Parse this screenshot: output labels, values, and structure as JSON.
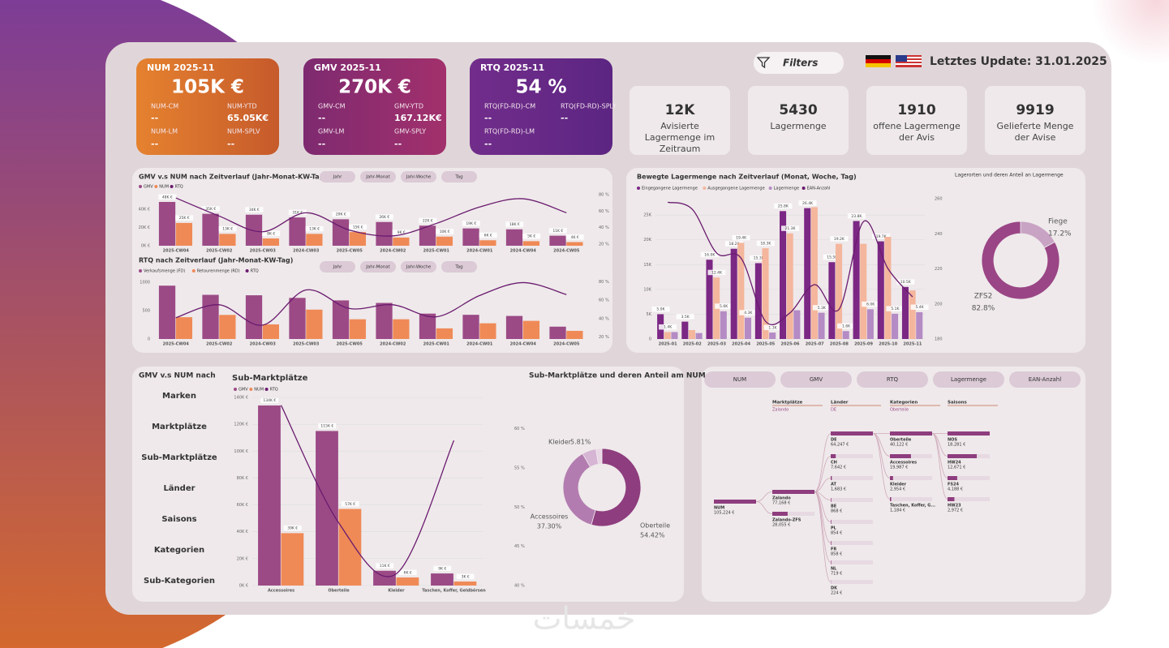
{
  "header": {
    "filters": "Filters",
    "update": "Letztes Update: 31.01.2025"
  },
  "kpis": [
    {
      "title": "NUM 2025-11",
      "value": "105K €",
      "colors": [
        "#e5822f",
        "#c65a2b"
      ],
      "items": [
        {
          "label": "NUM-CM",
          "value": "--"
        },
        {
          "label": "NUM-YTD",
          "value": "65.05K€"
        },
        {
          "label": "NUM-LM",
          "value": "--"
        },
        {
          "label": "NUM-SPLV",
          "value": "--"
        }
      ]
    },
    {
      "title": "GMV 2025-11",
      "value": "270K €",
      "colors": [
        "#7e2a70",
        "#a2306c"
      ],
      "items": [
        {
          "label": "GMV-CM",
          "value": "--"
        },
        {
          "label": "GMV-YTD",
          "value": "167.12K€"
        },
        {
          "label": "GMV-LM",
          "value": "--"
        },
        {
          "label": "GMV-SPLY",
          "value": "--"
        }
      ]
    },
    {
      "title": "RTQ 2025-11",
      "value": "54 %",
      "colors": [
        "#722d8b",
        "#5c2582"
      ],
      "items": [
        {
          "label": "RTQ(FD-RD)-CM",
          "value": "--"
        },
        {
          "label": "RTQ(FD-RD)-SPLY",
          "value": "--"
        },
        {
          "label": "RTQ(FD-RD)-LM",
          "value": "--"
        }
      ]
    }
  ],
  "stats": [
    {
      "value": "12K",
      "label": "Avisierte Lagermenge im Zeitraum"
    },
    {
      "value": 5430,
      "label": "Lagermenge"
    },
    {
      "value": 1910,
      "label": "offene Lagermenge der Avis"
    },
    {
      "value": 9919,
      "label": "Gelieferte Menge der Avise"
    }
  ],
  "slicer": {
    "title": "GMV v.s NUM nach",
    "items": [
      "Marken",
      "Marktplätze",
      "Sub-Marktplätze",
      "Länder",
      "Saisons",
      "Kategorien",
      "Sub-Kategorien"
    ]
  },
  "measure_buttons": [
    "NUM",
    "GMV",
    "RTQ",
    "Lagermenge",
    "EAN-Anzahl"
  ],
  "chart_data": [
    {
      "type": "combo",
      "title": "GMV v.s NUM nach Zeitverlauf (Jahr-Monat-KW-Tag)",
      "buttons": [
        "Jahr",
        "Jahr-Monat",
        "Jahr-Woche",
        "Tag"
      ],
      "categories": [
        "2025-CW04",
        "2025-CW02",
        "2025-CW03",
        "2024-CW03",
        "2025-CW05",
        "2024-CW02",
        "2025-CW01",
        "2024-CW01",
        "2024-CW04",
        "2024-CW05"
      ],
      "series": [
        {
          "name": "GMV",
          "color": "#9b4a86",
          "kind": "bar",
          "values": [
            48000,
            35000,
            34000,
            31000,
            29000,
            26000,
            22000,
            19000,
            18000,
            11000
          ],
          "value_labels": [
            "48K €",
            "35K €",
            "34K €",
            "31K €",
            "29K €",
            "26K €",
            "22K €",
            "19K €",
            "18K €",
            "11K €"
          ]
        },
        {
          "name": "NUM",
          "color": "#ef8a57",
          "kind": "bar",
          "values": [
            25000,
            13000,
            8000,
            13000,
            15000,
            9000,
            10000,
            6000,
            5000,
            4000
          ],
          "value_labels": [
            "25K €",
            "13K €",
            "8K €",
            "13K €",
            "15K €",
            "9K €",
            "10K €",
            "6K €",
            "5K €",
            "4K €"
          ]
        },
        {
          "name": "RTQ",
          "color": "#6a1b6e",
          "kind": "line",
          "axis": "y2",
          "values": [
            76,
            54,
            35,
            58,
            37,
            30,
            45,
            65,
            75,
            58
          ]
        }
      ],
      "ylim": [
        0,
        56000
      ],
      "yticks": [
        {
          "value": 0,
          "label": "0K €"
        },
        {
          "value": 20000,
          "label": "20K €"
        },
        {
          "value": 40000,
          "label": "40K €"
        }
      ],
      "y2lim": [
        18,
        80
      ],
      "y2ticks": [
        {
          "value": 20,
          "label": "20 %"
        },
        {
          "value": 40,
          "label": "40 %"
        },
        {
          "value": 60,
          "label": "60 %"
        },
        {
          "value": 80,
          "label": "80 %"
        }
      ],
      "grid": false
    },
    {
      "type": "combo",
      "title": "RTQ nach Zeitverlauf (Jahr-Monat-KW-Tag)",
      "buttons": [
        "Jahr",
        "Jahr-Monat",
        "Jahr-Woche",
        "Tag"
      ],
      "categories": [
        "2025-CW04",
        "2025-CW02",
        "2024-CW03",
        "2025-CW03",
        "2025-CW05",
        "2024-CW02",
        "2025-CW01",
        "2024-CW01",
        "2024-CW04",
        "2024-CW05"
      ],
      "series": [
        {
          "name": "Verkaufsmenge (FD)",
          "color": "#9b4a86",
          "kind": "bar",
          "values": [
            937,
            776,
            768,
            722,
            678,
            634,
            446,
            425,
            405,
            217
          ]
        },
        {
          "name": "Retourenmenge (RD)",
          "color": "#ef8a57",
          "kind": "bar",
          "values": [
            383,
            423,
            257,
            516,
            347,
            347,
            187,
            276,
            319,
            143
          ]
        },
        {
          "name": "RTQ",
          "color": "#6a1b6e",
          "kind": "line",
          "axis": "y2",
          "values": [
            41,
            55,
            33,
            71,
            51,
            55,
            42,
            65,
            79,
            66
          ]
        }
      ],
      "ylim": [
        0,
        1040
      ],
      "yticks": [
        0,
        500,
        1000
      ],
      "y2lim": [
        18,
        82
      ],
      "y2ticks": [
        {
          "value": 20,
          "label": "20 %"
        },
        {
          "value": 40,
          "label": "40 %"
        },
        {
          "value": 60,
          "label": "60 %"
        },
        {
          "value": 80,
          "label": "80 %"
        }
      ],
      "grid": false
    },
    {
      "type": "combo",
      "title": "Bewegte Lagermenge nach Zeitverlauf (Monat, Woche, Tag)",
      "categories": [
        "2025-01",
        "2025-02",
        "2025-03",
        "2025-04",
        "2025-05",
        "2025-06",
        "2025-07",
        "2025-08",
        "2025-09",
        "2025-10",
        "2025-11"
      ],
      "series": [
        {
          "name": "Eingegangene Lagermenge",
          "color": "#7b2784",
          "kind": "bar",
          "values": [
            5000,
            3500,
            16000,
            18200,
            15300,
            25800,
            26400,
            15500,
            23800,
            19700,
            10500
          ],
          "value_labels": [
            "5.0K",
            "3.5K",
            "16.0K",
            "18.2K",
            "15.3K",
            "25.8K",
            "26.4K",
            "15.5K",
            "23.8K",
            "19.7K",
            "10.5K"
          ]
        },
        {
          "name": "Ausgegangene Lagermenge",
          "color": "#f4b69c",
          "kind": "bar",
          "values": [
            1400,
            1800,
            12400,
            19400,
            18300,
            21300,
            26600,
            19200,
            19200,
            20600,
            9800
          ],
          "value_labels": [
            "1.4K",
            null,
            "12.4K",
            "19.4K",
            "18.3K",
            "21.3K",
            null,
            "19.2K",
            null,
            null,
            null
          ]
        },
        {
          "name": "Lagermenge",
          "color": "#b48bc4",
          "kind": "bar",
          "values": [
            1400,
            1200,
            5600,
            4300,
            1300,
            5800,
            5300,
            1600,
            6000,
            5100,
            5400
          ],
          "value_labels": [
            null,
            null,
            "5.6K",
            "4.3K",
            "1.3K",
            null,
            "5.3K",
            "1.6K",
            "6.0K",
            "5.1K",
            "5.4K"
          ]
        },
        {
          "name": "EAN-Anzahl",
          "color": "#6a1b6e",
          "kind": "line",
          "axis": "y2",
          "values": [
            258,
            254,
            229,
            226,
            190,
            195,
            211,
            197,
            247,
            220,
            204
          ]
        }
      ],
      "ylim": [
        0,
        28300
      ],
      "yticks": [
        0,
        {
          "value": 5000,
          "label": "5K"
        },
        {
          "value": 10000,
          "label": "10K"
        },
        {
          "value": 15000,
          "label": "15K"
        },
        {
          "value": 20000,
          "label": "20K"
        },
        {
          "value": 25000,
          "label": "25K"
        }
      ],
      "y2lim": [
        180,
        260
      ],
      "y2ticks": [
        180,
        200,
        220,
        240,
        260
      ],
      "grid": true
    },
    {
      "type": "donut",
      "title": "Lagerorten und deren Anteil an Lagermenge",
      "categories": [
        "Fiege",
        "ZFS2"
      ],
      "values": [
        17.2,
        82.8
      ],
      "value_labels": [
        "17.2%",
        "82.8%"
      ],
      "colors": [
        "#c9a3c3",
        "#9a4585"
      ]
    },
    {
      "type": "combo",
      "title": "Sub-Marktplätze",
      "categories": [
        "Accessoires",
        "Oberteile",
        "Kleider",
        "Taschen, Koffer, Geldbörsen"
      ],
      "series": [
        {
          "name": "GMV",
          "color": "#9b4a86",
          "kind": "bar",
          "values": [
            134000,
            115000,
            11000,
            9000
          ],
          "value_labels": [
            "134K €",
            "115K €",
            "11K €",
            "9K €"
          ]
        },
        {
          "name": "NUM",
          "color": "#ef8a57",
          "kind": "bar",
          "values": [
            39000,
            57000,
            6000,
            3000
          ],
          "value_labels": [
            "39K €",
            "57K €",
            "6K €",
            "3K €"
          ]
        },
        {
          "name": "RTQ",
          "color": "#6a1b6e",
          "kind": "line",
          "axis": "y2",
          "values": [
            63,
            48,
            41.5,
            58.5
          ]
        }
      ],
      "ylim": [
        0,
        140000
      ],
      "yticks": [
        {
          "value": 0,
          "label": "0K €"
        },
        {
          "value": 20000,
          "label": "20K €"
        },
        {
          "value": 40000,
          "label": "40K €"
        },
        {
          "value": 60000,
          "label": "60K €"
        },
        {
          "value": 80000,
          "label": "80K €"
        },
        {
          "value": 100000,
          "label": "100K €"
        },
        {
          "value": 120000,
          "label": "120K €"
        },
        {
          "value": 140000,
          "label": "140K €"
        }
      ],
      "y2lim": [
        40,
        64
      ],
      "y2ticks": [
        {
          "value": 40,
          "label": "40 %"
        },
        {
          "value": 45,
          "label": "45 %"
        },
        {
          "value": 50,
          "label": "50 %"
        },
        {
          "value": 55,
          "label": "55 %"
        },
        {
          "value": 60,
          "label": "60 %"
        }
      ],
      "grid": true
    },
    {
      "type": "donut",
      "title": "Sub-Marktplätze und deren Anteil am NUM",
      "categories": [
        "Oberteile",
        "Accessoires",
        "Kleider",
        null
      ],
      "values": [
        54.42,
        37.3,
        5.81,
        2.47
      ],
      "value_labels": [
        "54.42%",
        "37.30%",
        "5.81%",
        null
      ],
      "colors": [
        "#8e3d7e",
        "#b37cb0",
        "#d6b4d4",
        "#ead7e6"
      ]
    }
  ],
  "tree": {
    "columns": [
      {
        "title": "Marktplätze",
        "filter": "Zalando"
      },
      {
        "title": "Länder",
        "filter": "DE"
      },
      {
        "title": "Kategorien",
        "filter": "Oberteile"
      },
      {
        "title": "Saisons"
      }
    ],
    "root": {
      "label": "NUM",
      "value": 105224,
      "value_label": "105,224 €"
    },
    "levels": [
      [
        {
          "label": "Zalando",
          "value": 77168,
          "value_label": "77,168 €"
        },
        {
          "label": "Zalando-ZFS",
          "value": 28055,
          "value_label": "28,055 €"
        }
      ],
      [
        {
          "label": "DE",
          "value": 64247,
          "value_label": "64,247 €"
        },
        {
          "label": "CH",
          "value": 7642,
          "value_label": "7,642 €"
        },
        {
          "label": "AT",
          "value": 1683,
          "value_label": "1,683 €"
        },
        {
          "label": "BE",
          "value": 868,
          "value_label": "868 €"
        },
        {
          "label": "PL",
          "value": 854,
          "value_label": "854 €"
        },
        {
          "label": "FR",
          "value": 858,
          "value_label": "858 €"
        },
        {
          "label": "NL",
          "value": 719,
          "value_label": "719 €"
        },
        {
          "label": "DK",
          "value": 224,
          "value_label": "224 €"
        }
      ],
      [
        {
          "label": "Oberteile",
          "value": 40122,
          "value_label": "40,122 €"
        },
        {
          "label": "Accessoires",
          "value": 19987,
          "value_label": "19,987 €"
        },
        {
          "label": "Kleider",
          "value": 2954,
          "value_label": "2,954 €"
        },
        {
          "label": "Taschen, Koffer, G...",
          "value": 1184,
          "value_label": "1,184 €"
        }
      ],
      [
        {
          "label": "NOS",
          "value": 18281,
          "value_label": "18,281 €"
        },
        {
          "label": "HW24",
          "value": 12671,
          "value_label": "12,671 €"
        },
        {
          "label": "FS24",
          "value": 4188,
          "value_label": "4,188 €"
        },
        {
          "label": "HW23",
          "value": 2972,
          "value_label": "2,972 €"
        }
      ]
    ]
  },
  "watermark": "خمسات"
}
